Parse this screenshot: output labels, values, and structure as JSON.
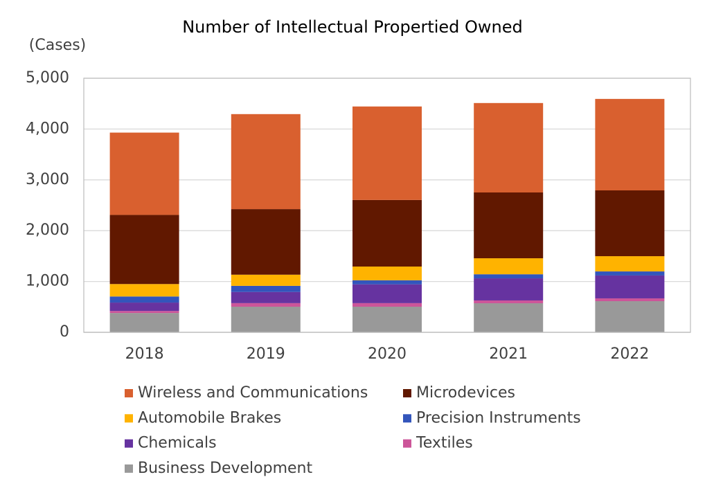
{
  "chart_data": {
    "type": "stacked_bar",
    "title": "Number of Intellectual Propertied Owned",
    "y_label": "(Cases)",
    "categories": [
      "2018",
      "2019",
      "2020",
      "2021",
      "2022"
    ],
    "series": [
      {
        "name": "Wireless and Communications",
        "color": "#d9602f",
        "values": [
          1620,
          1870,
          1840,
          1760,
          1800
        ]
      },
      {
        "name": "Microdevices",
        "color": "#611800",
        "values": [
          1360,
          1290,
          1310,
          1295,
          1295
        ]
      },
      {
        "name": "Automobile Brakes",
        "color": "#ffb300",
        "values": [
          245,
          220,
          270,
          315,
          300
        ]
      },
      {
        "name": "Precision Instruments",
        "color": "#3355bb",
        "values": [
          120,
          120,
          80,
          80,
          80
        ]
      },
      {
        "name": "Chemicals",
        "color": "#6633a0",
        "values": [
          165,
          220,
          370,
          435,
          450
        ]
      },
      {
        "name": "Textiles",
        "color": "#cc5599",
        "values": [
          40,
          70,
          70,
          55,
          55
        ]
      },
      {
        "name": "Business Development",
        "color": "#999999",
        "values": [
          380,
          504,
          504,
          572,
          613
        ]
      }
    ],
    "ylim": [
      0,
      5000
    ],
    "yticks": [
      0,
      {
        "value": 1000,
        "label": "1,000"
      },
      {
        "value": 2000,
        "label": "2,000"
      },
      {
        "value": 3000,
        "label": "3,000"
      },
      {
        "value": 4000,
        "label": "4,000"
      },
      {
        "value": 5000,
        "label": "5,000"
      }
    ],
    "grid": true
  }
}
